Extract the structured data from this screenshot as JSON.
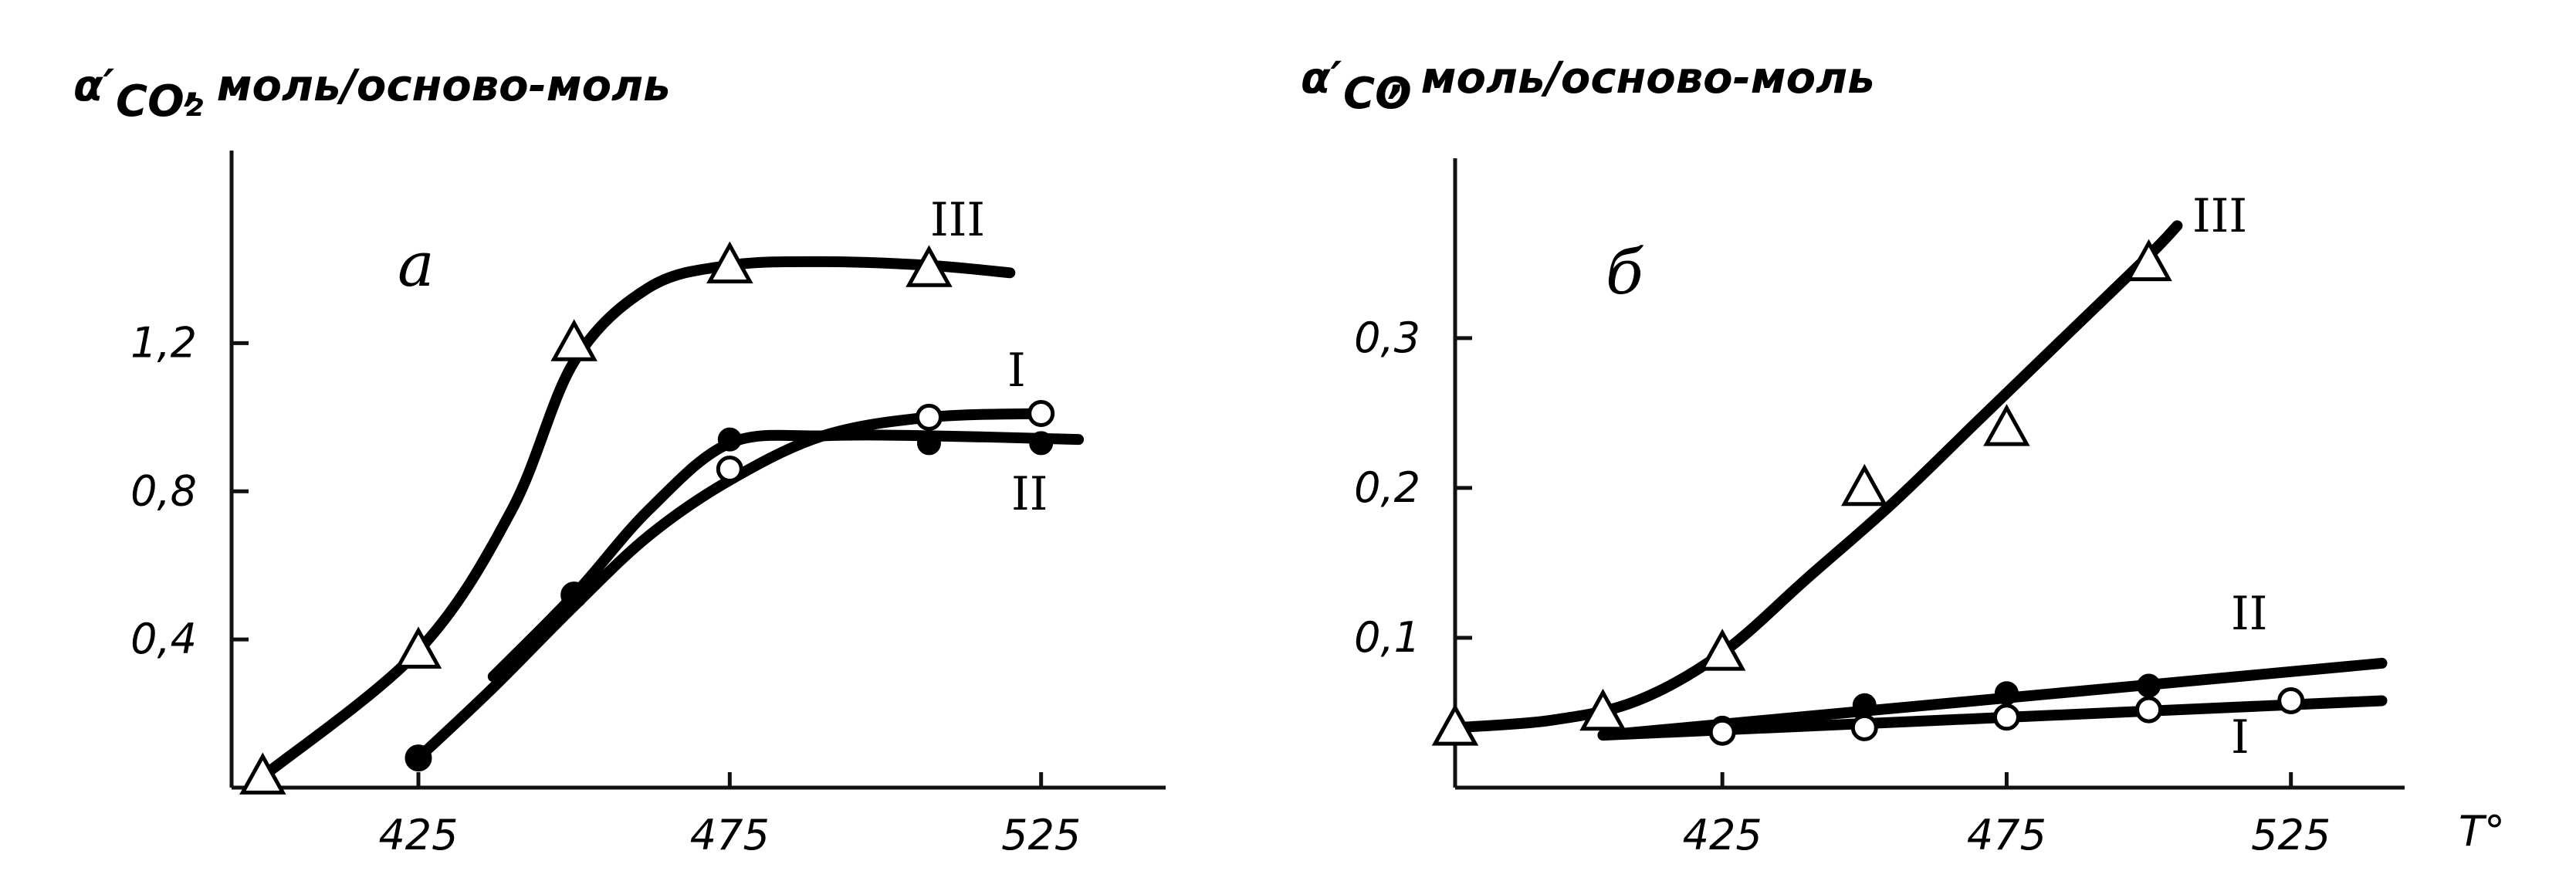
{
  "chart_data": [
    {
      "type": "line",
      "panel_label": "а",
      "ylabel_symbol": "α′",
      "ylabel_sub": "CO₂",
      "ylabel_units": ", моль/осново-моль",
      "xticks": [
        "425",
        "475",
        "525"
      ],
      "yticks": [
        "0,4",
        "0,8",
        "1,2"
      ],
      "xlim": [
        395,
        545
      ],
      "ylim": [
        0,
        1.72
      ],
      "series": [
        {
          "name": "III",
          "marker": "triangle",
          "x": [
            400,
            425,
            450,
            475,
            507
          ],
          "y": [
            0.03,
            0.37,
            1.2,
            1.41,
            1.4
          ],
          "curve_x": [
            400,
            425,
            440,
            450,
            462,
            475,
            490,
            507,
            520
          ],
          "curve_y": [
            0.03,
            0.37,
            0.75,
            1.15,
            1.35,
            1.41,
            1.42,
            1.41,
            1.39
          ]
        },
        {
          "name": "I",
          "marker": "open-circle",
          "x": [
            425,
            450,
            475,
            507,
            525
          ],
          "y": [
            0.08,
            0.52,
            0.86,
            1.0,
            1.01
          ],
          "curve_x": [
            425,
            437,
            450,
            462,
            475,
            490,
            507,
            525
          ],
          "curve_y": [
            0.08,
            0.27,
            0.49,
            0.68,
            0.83,
            0.95,
            1.0,
            1.01
          ]
        },
        {
          "name": "II",
          "marker": "filled-circle",
          "x": [
            425,
            450,
            475,
            507,
            525
          ],
          "y": [
            0.08,
            0.52,
            0.94,
            0.93,
            0.93
          ],
          "curve_x": [
            437,
            450,
            462,
            475,
            490,
            507,
            531
          ],
          "curve_y": [
            0.3,
            0.52,
            0.75,
            0.93,
            0.95,
            0.95,
            0.94
          ]
        }
      ]
    },
    {
      "type": "line",
      "panel_label": "б",
      "ylabel_symbol": "α′",
      "ylabel_sub": "CO",
      "ylabel_units": ", моль/осново-моль",
      "xticks": [
        "425",
        "475",
        "525"
      ],
      "yticks": [
        "0,1",
        "0,2",
        "0,3"
      ],
      "xaxis_label": "T°",
      "xlim": [
        378,
        545
      ],
      "ylim": [
        0,
        0.42
      ],
      "series": [
        {
          "name": "III",
          "marker": "triangle",
          "x": [
            378,
            404,
            425,
            450,
            475,
            500
          ],
          "y": [
            0.04,
            0.05,
            0.09,
            0.2,
            0.24,
            0.35
          ],
          "curve_x": [
            378,
            395,
            410,
            425,
            440,
            455,
            470,
            485,
            500,
            505
          ],
          "curve_y": [
            0.04,
            0.045,
            0.058,
            0.09,
            0.14,
            0.19,
            0.245,
            0.3,
            0.355,
            0.375
          ]
        },
        {
          "name": "II",
          "marker": "filled-circle",
          "x": [
            425,
            450,
            475,
            500
          ],
          "y": [
            0.04,
            0.055,
            0.063,
            0.068
          ],
          "curve_x": [
            404,
            541
          ],
          "curve_y": [
            0.035,
            0.083
          ]
        },
        {
          "name": "I",
          "marker": "open-circle",
          "x": [
            425,
            450,
            475,
            500,
            525
          ],
          "y": [
            0.037,
            0.04,
            0.047,
            0.052,
            0.058
          ],
          "curve_x": [
            404,
            541
          ],
          "curve_y": [
            0.035,
            0.058
          ]
        }
      ]
    }
  ]
}
